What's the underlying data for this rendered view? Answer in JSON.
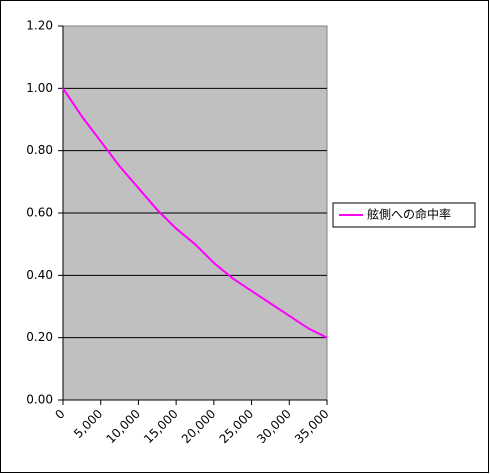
{
  "chart_data": {
    "type": "line",
    "x": [
      0,
      2500,
      5000,
      7500,
      10000,
      12500,
      15000,
      17500,
      20000,
      22500,
      25000,
      27500,
      30000,
      32500,
      35000
    ],
    "series": [
      {
        "name": "舷側への命中率",
        "color": "#ff00ff",
        "values": [
          1.0,
          0.91,
          0.83,
          0.75,
          0.68,
          0.61,
          0.55,
          0.5,
          0.44,
          0.39,
          0.35,
          0.31,
          0.27,
          0.23,
          0.2
        ]
      }
    ],
    "xlim": [
      0,
      35000
    ],
    "xticks": [
      0,
      {
        "value": 5000,
        "label": "5,000"
      },
      {
        "value": 10000,
        "label": "10,000"
      },
      {
        "value": 15000,
        "label": "15,000"
      },
      {
        "value": 20000,
        "label": "20,000"
      },
      {
        "value": 25000,
        "label": "25,000"
      },
      {
        "value": 30000,
        "label": "30,000"
      },
      {
        "value": 35000,
        "label": "35,000"
      }
    ],
    "ylim": [
      0,
      1.2
    ],
    "yticks": [
      {
        "value": 0,
        "label": "0.00"
      },
      {
        "value": 0.2,
        "label": "0.20"
      },
      {
        "value": 0.4,
        "label": "0.40"
      },
      {
        "value": 0.6,
        "label": "0.60"
      },
      {
        "value": 0.8,
        "label": "0.80"
      },
      {
        "value": 1.0,
        "label": "1.00"
      },
      {
        "value": 1.2,
        "label": "1.20"
      }
    ],
    "grid": true,
    "legend": "right",
    "plot_background": "#c0c0c0"
  }
}
